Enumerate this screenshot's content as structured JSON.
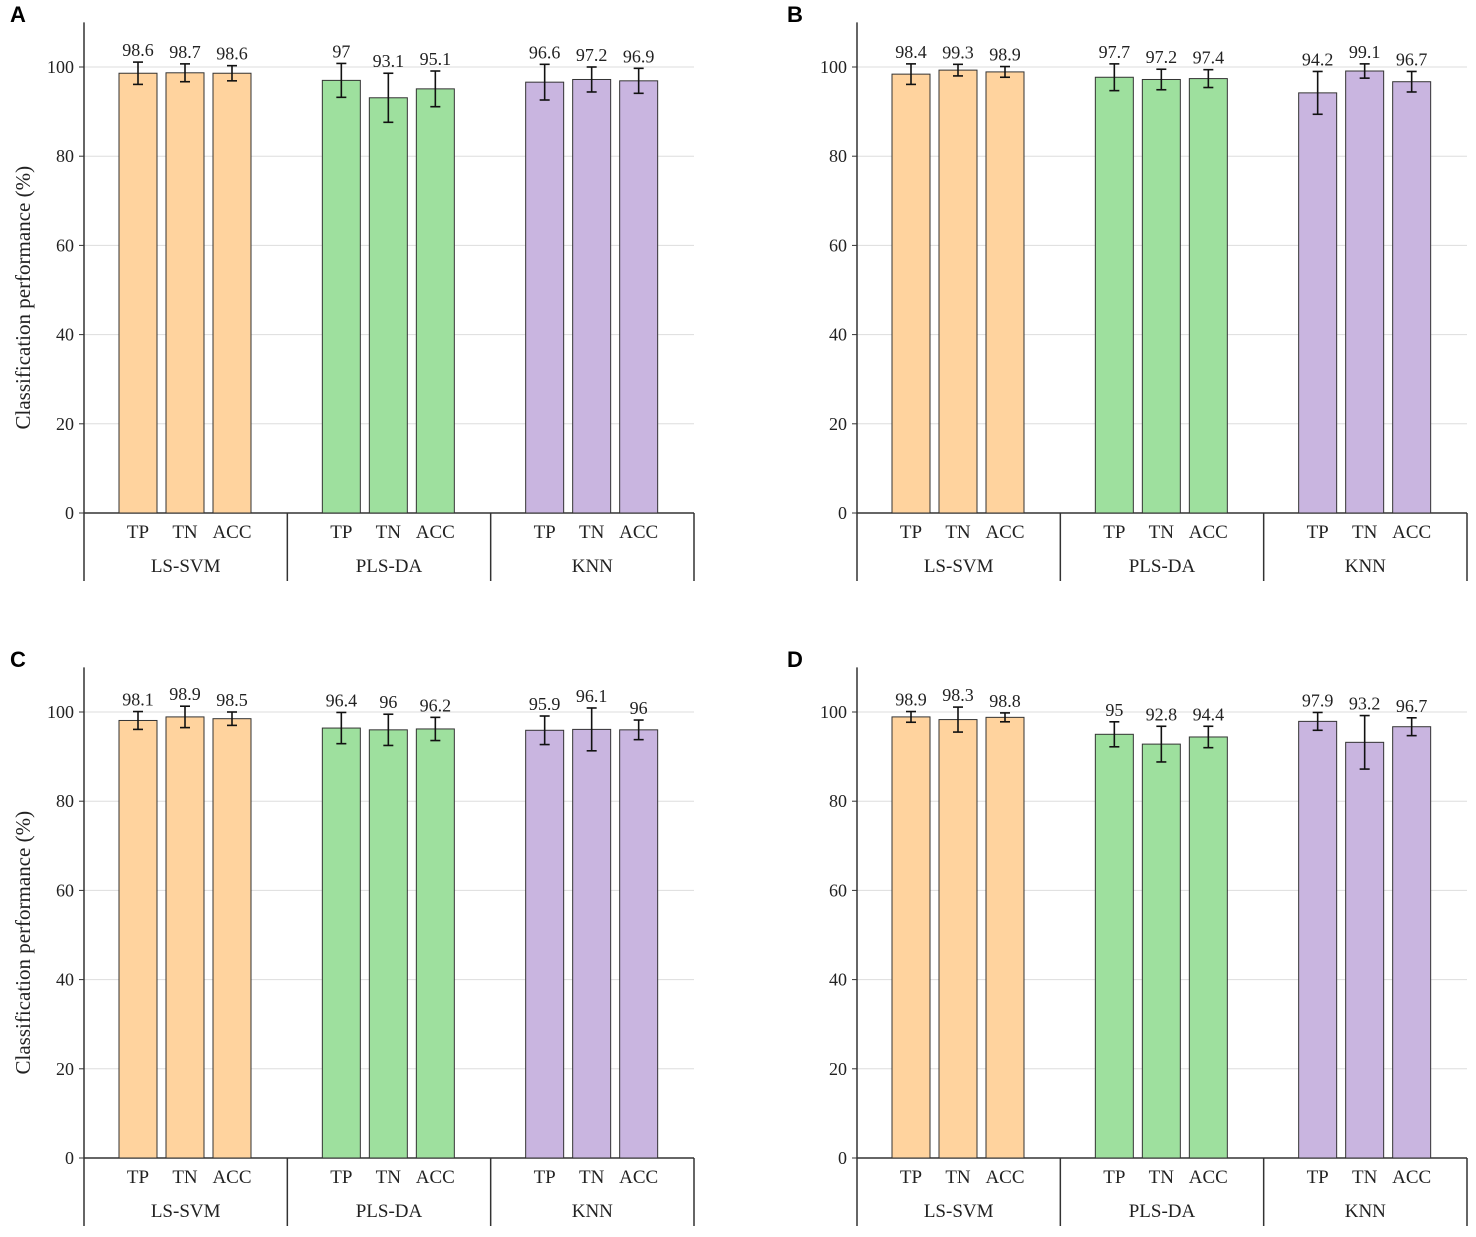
{
  "chart_data": [
    {
      "panel": "A",
      "type": "bar",
      "ylabel": "Classification performance (%)",
      "ylim": [
        0,
        110
      ],
      "yticks": [
        0,
        20,
        40,
        60,
        80,
        100
      ],
      "grid": true,
      "categories": [
        "TP",
        "TN",
        "ACC"
      ],
      "groups": [
        {
          "name": "LS-SVM",
          "values": [
            98.6,
            98.7,
            98.6
          ],
          "errors": [
            2.5,
            2.0,
            1.7
          ]
        },
        {
          "name": "PLS-DA",
          "values": [
            97,
            93.1,
            95.1
          ],
          "errors": [
            3.8,
            5.5,
            4.0
          ]
        },
        {
          "name": "KNN",
          "values": [
            96.6,
            97.2,
            96.9
          ],
          "errors": [
            4.0,
            2.8,
            2.8
          ]
        }
      ]
    },
    {
      "panel": "B",
      "type": "bar",
      "ylabel": "",
      "ylim": [
        0,
        110
      ],
      "yticks": [
        0,
        20,
        40,
        60,
        80,
        100
      ],
      "grid": true,
      "categories": [
        "TP",
        "TN",
        "ACC"
      ],
      "groups": [
        {
          "name": "LS-SVM",
          "values": [
            98.4,
            99.3,
            98.9
          ],
          "errors": [
            2.3,
            1.3,
            1.2
          ]
        },
        {
          "name": "PLS-DA",
          "values": [
            97.7,
            97.2,
            97.4
          ],
          "errors": [
            3.0,
            2.3,
            2.0
          ]
        },
        {
          "name": "KNN",
          "values": [
            94.2,
            99.1,
            96.7
          ],
          "errors": [
            4.8,
            1.6,
            2.3
          ]
        }
      ]
    },
    {
      "panel": "C",
      "type": "bar",
      "ylabel": "Classification performance (%)",
      "ylim": [
        0,
        110
      ],
      "yticks": [
        0,
        20,
        40,
        60,
        80,
        100
      ],
      "grid": true,
      "categories": [
        "TP",
        "TN",
        "ACC"
      ],
      "groups": [
        {
          "name": "LS-SVM",
          "values": [
            98.1,
            98.9,
            98.5
          ],
          "errors": [
            2.0,
            2.4,
            1.5
          ]
        },
        {
          "name": "PLS-DA",
          "values": [
            96.4,
            96,
            96.2
          ],
          "errors": [
            3.5,
            3.5,
            2.6
          ]
        },
        {
          "name": "KNN",
          "values": [
            95.9,
            96.1,
            96
          ],
          "errors": [
            3.2,
            4.8,
            2.2
          ]
        }
      ]
    },
    {
      "panel": "D",
      "type": "bar",
      "ylabel": "",
      "ylim": [
        0,
        110
      ],
      "yticks": [
        0,
        20,
        40,
        60,
        80,
        100
      ],
      "grid": true,
      "categories": [
        "TP",
        "TN",
        "ACC"
      ],
      "groups": [
        {
          "name": "LS-SVM",
          "values": [
            98.9,
            98.3,
            98.8
          ],
          "errors": [
            1.2,
            2.8,
            1.0
          ]
        },
        {
          "name": "PLS-DA",
          "values": [
            95,
            92.8,
            94.4
          ],
          "errors": [
            2.8,
            4.0,
            2.4
          ]
        },
        {
          "name": "KNN",
          "values": [
            97.9,
            93.2,
            96.7
          ],
          "errors": [
            2.0,
            6.0,
            2.0
          ]
        }
      ]
    }
  ],
  "colors": {
    "LS-SVM": "#FFD39E",
    "PLS-DA": "#9EE09E",
    "KNN": "#C9B5E0",
    "edge": "#333333",
    "grid": "#dddddd"
  }
}
